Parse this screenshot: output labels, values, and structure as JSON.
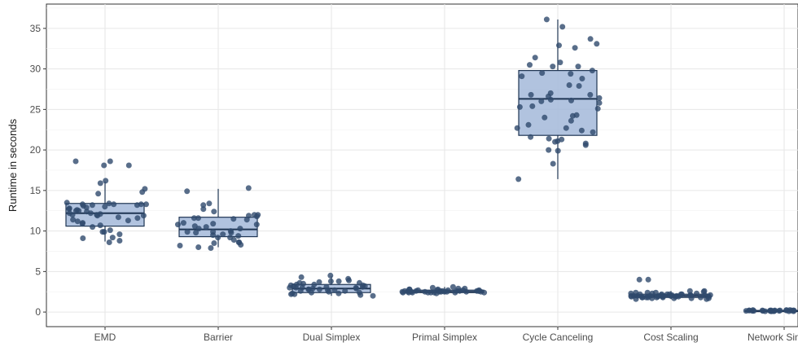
{
  "chart_data": {
    "type": "box",
    "title": "",
    "xlabel": "",
    "ylabel": "Runtime in seconds",
    "ylim": [
      -1.8,
      38
    ],
    "yticks": [
      0,
      5,
      10,
      15,
      20,
      25,
      30,
      35
    ],
    "categories": [
      "EMD",
      "Barrier",
      "Dual Simplex",
      "Primal Simplex",
      "Cycle Canceling",
      "Cost Scaling",
      "Network Simplex"
    ],
    "grid": true,
    "colors": {
      "box_fill": "#a3b8d9",
      "box_line": "#1f3553",
      "point": "#2f4a6d"
    },
    "boxes": [
      {
        "category": "EMD",
        "whisker_low": 8.7,
        "q1": 10.6,
        "median": 12.2,
        "q3": 13.4,
        "whisker_high": 16.1
      },
      {
        "category": "Barrier",
        "whisker_low": 8.0,
        "q1": 9.3,
        "median": 10.2,
        "q3": 11.7,
        "whisker_high": 15.2
      },
      {
        "category": "Dual Simplex",
        "whisker_low": 2.0,
        "q1": 2.4,
        "median": 2.9,
        "q3": 3.4,
        "whisker_high": 4.4
      },
      {
        "category": "Primal Simplex",
        "whisker_low": 2.2,
        "q1": 2.4,
        "median": 2.5,
        "q3": 2.7,
        "whisker_high": 3.1
      },
      {
        "category": "Cycle Canceling",
        "whisker_low": 16.4,
        "q1": 21.8,
        "median": 26.3,
        "q3": 29.8,
        "whisker_high": 36.1
      },
      {
        "category": "Cost Scaling",
        "whisker_low": 1.6,
        "q1": 1.8,
        "median": 2.0,
        "q3": 2.2,
        "whisker_high": 2.6
      },
      {
        "category": "Network Simplex",
        "whisker_low": 0.05,
        "q1": 0.1,
        "median": 0.15,
        "q3": 0.2,
        "whisker_high": 0.3
      }
    ],
    "points": [
      {
        "category": "EMD",
        "values": [
          9.9,
          10.1,
          12.0,
          13.1,
          12.1,
          16.2,
          12.8,
          13.2,
          9.2,
          11.9,
          12.4,
          18.1,
          11.7,
          12.7,
          13.0,
          13.3,
          9.6,
          12.5,
          18.6,
          18.1,
          11.2,
          13.5,
          14.8,
          15.2,
          11.4,
          10.7,
          11.9,
          12.5,
          14.6,
          8.6,
          8.8,
          12.9,
          12.6,
          13.3,
          15.9,
          10.9,
          13.4,
          12.2,
          18.6,
          11.3,
          10.5,
          13.2,
          12.2,
          13.3,
          9.1,
          11.6,
          9.9,
          11.0,
          13.3,
          12.0
        ]
      },
      {
        "category": "Barrier",
        "values": [
          10.3,
          9.8,
          9.9,
          10.6,
          12.4,
          11.0,
          8.2,
          7.9,
          11.5,
          10.0,
          10.8,
          12.7,
          9.5,
          9.2,
          9.9,
          11.4,
          8.5,
          10.9,
          11.6,
          9.8,
          8.6,
          14.9,
          10.3,
          8.3,
          15.3,
          12.0,
          12.0,
          11.9,
          8.6,
          9.2,
          9.6,
          10.8,
          13.2,
          10.5,
          11.6,
          13.4,
          8.9,
          9.4,
          8.0,
          11.8
        ]
      },
      {
        "category": "Dual Simplex",
        "values": [
          3.0,
          2.8,
          2.3,
          3.1,
          3.4,
          2.0,
          2.7,
          3.3,
          3.8,
          2.5,
          3.6,
          2.9,
          3.2,
          2.4,
          2.2,
          3.0,
          3.9,
          4.1,
          2.6,
          3.1,
          2.8,
          2.4,
          3.5,
          2.3,
          3.0,
          3.3,
          2.7,
          3.6,
          2.1,
          4.3,
          3.8,
          3.2,
          2.9,
          4.5,
          2.2,
          3.7,
          2.8,
          3.4,
          3.0,
          2.6
        ]
      },
      {
        "category": "Primal Simplex",
        "values": [
          2.6,
          2.5,
          2.4,
          2.8,
          2.3,
          2.5,
          2.6,
          2.7,
          2.4,
          2.5,
          2.6,
          2.9,
          2.4,
          2.5,
          2.7,
          2.6,
          2.5,
          3.0,
          2.4,
          2.6,
          2.8,
          2.5,
          2.7,
          2.4,
          2.6,
          3.1,
          2.5,
          2.4,
          2.7,
          2.6,
          2.5,
          2.8,
          2.4,
          2.6,
          2.9,
          2.5,
          2.7,
          2.6,
          2.5,
          2.4
        ]
      },
      {
        "category": "Cycle Canceling",
        "values": [
          33.7,
          27.0,
          21.1,
          32.6,
          28.8,
          22.2,
          21.3,
          25.8,
          28.0,
          20.6,
          30.3,
          29.1,
          25.1,
          35.2,
          29.4,
          20.0,
          27.9,
          22.4,
          19.9,
          18.3,
          26.8,
          24.3,
          25.3,
          36.1,
          21.0,
          26.4,
          26.1,
          23.1,
          24.2,
          30.5,
          25.4,
          30.8,
          29.5,
          22.7,
          33.1,
          32.9,
          16.4,
          26.6,
          26.8,
          23.6,
          31.4,
          30.3,
          26.0,
          29.8,
          22.7,
          21.4,
          20.8,
          21.6,
          24.0,
          26.2
        ]
      },
      {
        "category": "Cost Scaling",
        "values": [
          2.6,
          2.0,
          2.4,
          1.8,
          2.2,
          2.0,
          1.9,
          2.1,
          1.8,
          2.3,
          2.0,
          1.7,
          2.2,
          1.9,
          2.1,
          2.0,
          1.8,
          2.4,
          2.2,
          1.9,
          4.0,
          2.1,
          1.8,
          2.0,
          1.7,
          2.3,
          1.9,
          4.0,
          2.1,
          2.0,
          1.8,
          2.2,
          2.5,
          1.9,
          2.1,
          1.7,
          2.3,
          2.0,
          1.6,
          1.8,
          2.2,
          2.6,
          1.9,
          2.1,
          1.7,
          2.0,
          2.4,
          1.8,
          1.6,
          2.2
        ]
      },
      {
        "category": "Network Simplex",
        "values": [
          0.2,
          0.15,
          0.1,
          0.2,
          0.25,
          0.15,
          0.1,
          0.2,
          0.15,
          0.2,
          0.1,
          0.25,
          0.15,
          0.2,
          0.1,
          0.15,
          0.2,
          0.25,
          0.1,
          0.15,
          0.2,
          0.15,
          0.1,
          0.2,
          0.25,
          0.15,
          0.2,
          0.1,
          0.15,
          0.2,
          0.25,
          0.1,
          0.15,
          0.2,
          0.15,
          0.1,
          0.2,
          0.25,
          0.15,
          0.2
        ]
      }
    ]
  }
}
